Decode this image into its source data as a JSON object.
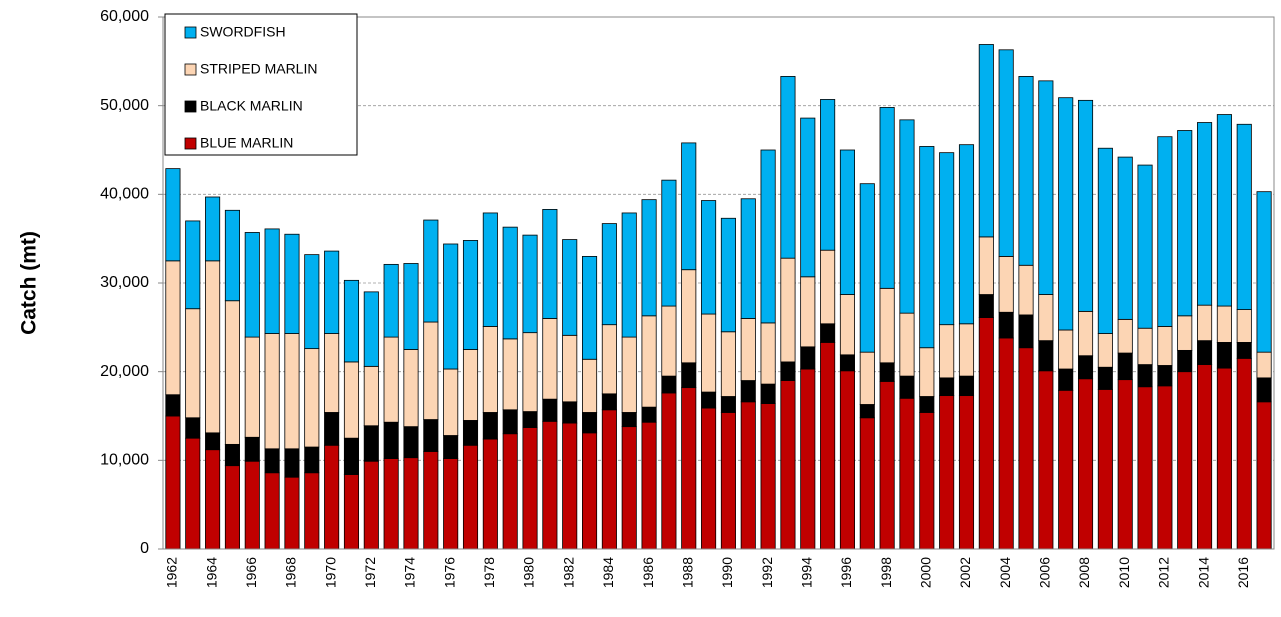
{
  "chart_data": {
    "type": "stacked_bar",
    "ylabel": "Catch (mt)",
    "categories": [
      "1962",
      null,
      "1964",
      null,
      "1966",
      null,
      "1968",
      null,
      "1970",
      null,
      "1972",
      null,
      "1974",
      null,
      "1976",
      null,
      "1978",
      null,
      "1980",
      null,
      "1982",
      null,
      "1984",
      null,
      "1986",
      null,
      "1988",
      null,
      "1990",
      null,
      "1992",
      null,
      "1994",
      null,
      "1996",
      null,
      "1998",
      null,
      "2000",
      null,
      "2002",
      null,
      "2004",
      null,
      "2006",
      null,
      "2008",
      null,
      "2010",
      null,
      "2012",
      null,
      "2014",
      null,
      "2016",
      null
    ],
    "series": [
      {
        "name": "SWORDFISH",
        "color": "#00b0f0",
        "values": [
          10400,
          9900,
          7200,
          10200,
          11800,
          11800,
          11200,
          10600,
          9300,
          9200,
          8400,
          8200,
          9700,
          11500,
          14100,
          12300,
          12800,
          12600,
          11000,
          12300,
          10800,
          11600,
          11400,
          14000,
          13100,
          14200,
          14300,
          12800,
          12800,
          13500,
          19500,
          20500,
          17900,
          17000,
          16300,
          19000,
          20400,
          21800,
          22700,
          19400,
          20200,
          21700,
          23300,
          21300,
          24100,
          26200,
          23800,
          20900,
          18300,
          18400,
          21400,
          20900,
          20600,
          21600,
          20900,
          18100
        ]
      },
      {
        "name": "STRIPED MARLIN",
        "color": "#fcd5b4",
        "values": [
          15100,
          12300,
          19400,
          16200,
          11300,
          13000,
          13000,
          11100,
          8900,
          8600,
          6700,
          9600,
          8700,
          11000,
          7500,
          8000,
          9700,
          8000,
          8900,
          9100,
          7500,
          6000,
          7800,
          8500,
          10300,
          7900,
          10500,
          8800,
          7300,
          7000,
          6900,
          11700,
          7900,
          8300,
          6800,
          5900,
          8400,
          7100,
          5500,
          6000,
          5900,
          6500,
          6300,
          5600,
          5200,
          4400,
          5000,
          3800,
          3800,
          4100,
          4400,
          3900,
          4000,
          4100,
          3700,
          2900
        ]
      },
      {
        "name": "BLACK MARLIN",
        "color": "#000000",
        "values": [
          2400,
          2300,
          1900,
          2400,
          2700,
          2700,
          3200,
          2900,
          3700,
          4100,
          4000,
          4100,
          3500,
          3600,
          2600,
          2800,
          3000,
          2700,
          1800,
          2500,
          2400,
          2300,
          1800,
          1600,
          1700,
          1900,
          2800,
          1800,
          1800,
          2400,
          2200,
          2100,
          2500,
          2100,
          1800,
          1500,
          2100,
          2500,
          1800,
          2000,
          2200,
          2600,
          2900,
          3700,
          3400,
          2400,
          2600,
          2500,
          3000,
          2500,
          2300,
          2400,
          2700,
          2900,
          1800,
          2700
        ]
      },
      {
        "name": "BLUE MARLIN",
        "color": "#c00000",
        "values": [
          15000,
          12500,
          11200,
          9400,
          9900,
          8600,
          8100,
          8600,
          11700,
          8400,
          9900,
          10200,
          10300,
          11000,
          10200,
          11700,
          12400,
          13000,
          13700,
          14400,
          14200,
          13100,
          15700,
          13800,
          14300,
          17600,
          18200,
          15900,
          15400,
          16600,
          16400,
          19000,
          20300,
          23300,
          20100,
          14800,
          18900,
          17000,
          15400,
          17300,
          17300,
          26100,
          23800,
          22700,
          20100,
          17900,
          19200,
          18000,
          19100,
          18300,
          18400,
          20000,
          20800,
          20400,
          21500,
          16600
        ]
      }
    ],
    "ylim": [
      0,
      60000
    ],
    "yticks": [
      0,
      {
        "value": 10000,
        "label": "10,000"
      },
      {
        "value": 20000,
        "label": "20,000"
      },
      {
        "value": 30000,
        "label": "30,000"
      },
      {
        "value": 40000,
        "label": "40,000"
      },
      {
        "value": 50000,
        "label": "50,000"
      },
      {
        "value": 60000,
        "label": "60,000"
      }
    ],
    "grid": true,
    "legend": "upper-left"
  }
}
